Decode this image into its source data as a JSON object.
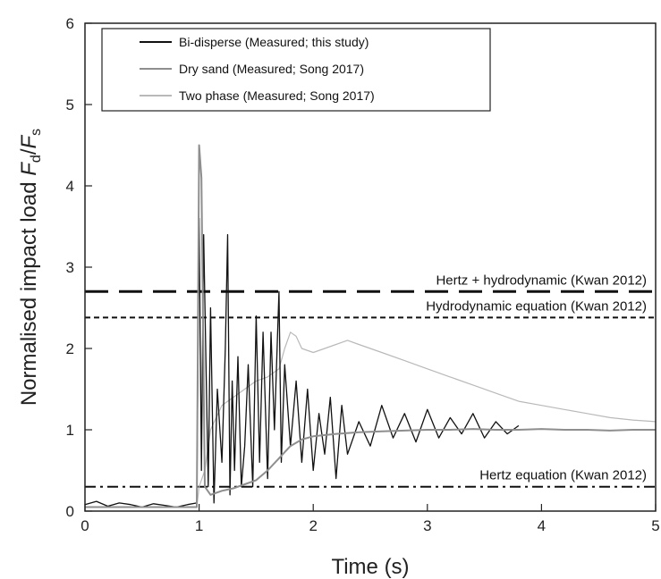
{
  "chart_data": {
    "type": "line",
    "xlabel": "Time (s)",
    "ylabel_prefix": "Normalised impact load ",
    "ylabel_num_sym": "F",
    "ylabel_num_sub": "d",
    "ylabel_den_sym": "F",
    "ylabel_den_sub": "s",
    "xlim": [
      0,
      5
    ],
    "ylim": [
      0,
      6
    ],
    "xticks": [
      0,
      1,
      2,
      3,
      4,
      5
    ],
    "yticks": [
      0,
      1,
      2,
      3,
      4,
      5,
      6
    ],
    "grid": false,
    "legend_position": "top-left",
    "series": [
      {
        "name": "Bi-disperse (Measured; this study)",
        "color": "#111111",
        "x": [
          0.0,
          0.1,
          0.2,
          0.3,
          0.4,
          0.5,
          0.6,
          0.7,
          0.8,
          0.9,
          0.98,
          1.0,
          1.02,
          1.04,
          1.06,
          1.08,
          1.1,
          1.13,
          1.16,
          1.2,
          1.23,
          1.25,
          1.27,
          1.29,
          1.31,
          1.34,
          1.37,
          1.4,
          1.43,
          1.47,
          1.5,
          1.53,
          1.56,
          1.6,
          1.63,
          1.66,
          1.7,
          1.72,
          1.75,
          1.8,
          1.85,
          1.9,
          1.95,
          2.0,
          2.05,
          2.1,
          2.15,
          2.2,
          2.25,
          2.3,
          2.4,
          2.5,
          2.6,
          2.7,
          2.8,
          2.9,
          3.0,
          3.1,
          3.2,
          3.3,
          3.4,
          3.5,
          3.6,
          3.7,
          3.8
        ],
        "y": [
          0.08,
          0.12,
          0.06,
          0.1,
          0.08,
          0.05,
          0.09,
          0.07,
          0.05,
          0.08,
          0.1,
          3.6,
          0.5,
          3.4,
          1.8,
          0.3,
          2.5,
          0.1,
          1.5,
          0.6,
          2.0,
          3.4,
          0.2,
          1.6,
          0.5,
          1.9,
          0.3,
          0.8,
          1.8,
          0.3,
          2.4,
          0.6,
          2.2,
          0.4,
          2.2,
          1.0,
          2.7,
          0.6,
          1.8,
          0.8,
          1.6,
          0.6,
          1.5,
          0.5,
          1.2,
          0.7,
          1.4,
          0.4,
          1.3,
          0.7,
          1.1,
          0.8,
          1.3,
          0.9,
          1.2,
          0.85,
          1.25,
          0.9,
          1.15,
          0.95,
          1.2,
          0.9,
          1.1,
          0.95,
          1.05
        ]
      },
      {
        "name": "Dry sand  (Measured; Song 2017)",
        "color": "#8e8e8e",
        "x": [
          0.0,
          0.5,
          0.98,
          1.0,
          1.02,
          1.05,
          1.1,
          1.2,
          1.3,
          1.4,
          1.5,
          1.6,
          1.7,
          1.8,
          1.9,
          2.0,
          2.2,
          2.4,
          2.6,
          2.8,
          3.0,
          3.2,
          3.4,
          3.6,
          3.8,
          4.0,
          4.2,
          4.4,
          4.6,
          4.8,
          5.0
        ],
        "y": [
          0.05,
          0.05,
          0.05,
          4.5,
          4.1,
          0.3,
          0.2,
          0.25,
          0.28,
          0.33,
          0.38,
          0.5,
          0.65,
          0.8,
          0.88,
          0.92,
          0.95,
          0.97,
          0.98,
          0.99,
          1.0,
          1.0,
          1.01,
          1.0,
          1.0,
          1.01,
          1.0,
          1.0,
          0.99,
          1.0,
          1.0
        ]
      },
      {
        "name": "Two phase  (Measured; Song 2017)",
        "color": "#b9b9b9",
        "x": [
          0.0,
          0.5,
          0.98,
          1.0,
          1.05,
          1.1,
          1.2,
          1.3,
          1.4,
          1.5,
          1.6,
          1.7,
          1.75,
          1.8,
          1.85,
          1.9,
          2.0,
          2.1,
          2.2,
          2.3,
          2.4,
          2.6,
          2.8,
          3.0,
          3.2,
          3.4,
          3.6,
          3.8,
          4.0,
          4.2,
          4.4,
          4.6,
          4.8,
          5.0
        ],
        "y": [
          0.05,
          0.05,
          0.05,
          0.3,
          0.5,
          1.0,
          1.3,
          1.4,
          1.5,
          1.6,
          1.65,
          1.75,
          2.0,
          2.2,
          2.15,
          2.0,
          1.95,
          2.0,
          2.05,
          2.1,
          2.05,
          1.95,
          1.85,
          1.75,
          1.65,
          1.55,
          1.45,
          1.35,
          1.3,
          1.25,
          1.2,
          1.15,
          1.12,
          1.1
        ]
      }
    ],
    "reference_lines": [
      {
        "label": "Hertz + hydrodynamic (Kwan 2012)",
        "y": 2.7,
        "style": "long-dash",
        "label_position": "above-right"
      },
      {
        "label": "Hydrodynamic equation (Kwan 2012)",
        "y": 2.38,
        "style": "short-dash",
        "label_position": "above-right"
      },
      {
        "label": "Hertz equation (Kwan 2012)",
        "y": 0.3,
        "style": "dash-dot",
        "label_position": "above-right"
      }
    ]
  }
}
